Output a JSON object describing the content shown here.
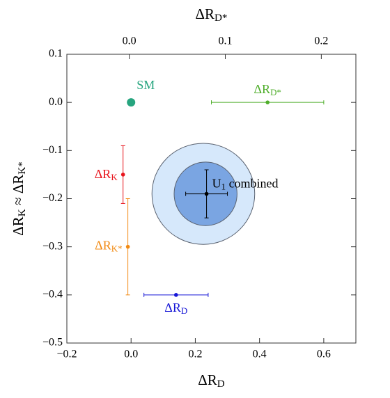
{
  "chart_data": {
    "type": "scatter",
    "xlabel": [
      {
        "text": "ΔR"
      },
      {
        "text": "D",
        "sub": true
      }
    ],
    "ylabel": [
      {
        "text": "ΔR"
      },
      {
        "text": "K",
        "sub": true
      },
      {
        "text": " ≈ ΔR"
      },
      {
        "text": "K*",
        "sub": true
      }
    ],
    "x2label": [
      {
        "text": "ΔR"
      },
      {
        "text": "D*",
        "sub": true
      }
    ],
    "xlim": [
      -0.2,
      0.7
    ],
    "ylim": [
      -0.5,
      0.1
    ],
    "x2lim": [
      -0.065,
      0.236
    ],
    "xticks": [
      {
        "value": -0.2,
        "label": "−0.2"
      },
      {
        "value": 0,
        "label": "0.0"
      },
      0.2,
      0.4,
      0.6
    ],
    "yticks": [
      {
        "value": -0.5,
        "label": "−0.5"
      },
      {
        "value": -0.4,
        "label": "−0.4"
      },
      {
        "value": -0.3,
        "label": "−0.3"
      },
      {
        "value": -0.2,
        "label": "−0.2"
      },
      {
        "value": -0.1,
        "label": "−0.1"
      },
      {
        "value": 0,
        "label": "0.0"
      },
      0.1
    ],
    "x2ticks": [
      {
        "value": 0,
        "label": "0.0"
      },
      0.1,
      0.2
    ],
    "contours": [
      {
        "cx": 0.225,
        "cy": -0.19,
        "rx": 0.16,
        "ry": 0.105,
        "color": "#d6e8fb"
      },
      {
        "cx": 0.232,
        "cy": -0.19,
        "rx": 0.098,
        "ry": 0.066,
        "color": "#7aa5e2"
      }
    ],
    "series": [
      {
        "label": [
          {
            "text": "SM"
          }
        ],
        "color": "#27a57f",
        "x": [
          0
        ],
        "values": [
          0
        ]
      },
      {
        "label": [
          {
            "text": "ΔR"
          },
          {
            "text": "D*",
            "sub": true
          }
        ],
        "color": "#4fae2b",
        "x": [
          0.425
        ],
        "values": [
          0
        ],
        "xerr": [
          0.175
        ]
      },
      {
        "label": [
          {
            "text": "ΔR"
          },
          {
            "text": "K",
            "sub": true
          }
        ],
        "color": "#e8141c",
        "x": [
          -0.025
        ],
        "values": [
          -0.15
        ],
        "yerr": [
          0.06
        ]
      },
      {
        "label": [
          {
            "text": "ΔR"
          },
          {
            "text": "K*",
            "sub": true
          }
        ],
        "color": "#f28a12",
        "x": [
          -0.01
        ],
        "values": [
          -0.3
        ],
        "yerr": [
          0.1
        ]
      },
      {
        "label": [
          {
            "text": "ΔR"
          },
          {
            "text": "D",
            "sub": true
          }
        ],
        "color": "#1515d6",
        "x": [
          0.14
        ],
        "values": [
          -0.4
        ],
        "xerr": [
          0.1
        ]
      },
      {
        "label": [
          {
            "text": "U"
          },
          {
            "text": "1",
            "sub": true
          },
          {
            "text": " combined"
          }
        ],
        "color": "#000000",
        "x": [
          0.235
        ],
        "values": [
          -0.19
        ],
        "xerr": [
          0.065
        ],
        "yerr": [
          0.05
        ]
      }
    ]
  }
}
